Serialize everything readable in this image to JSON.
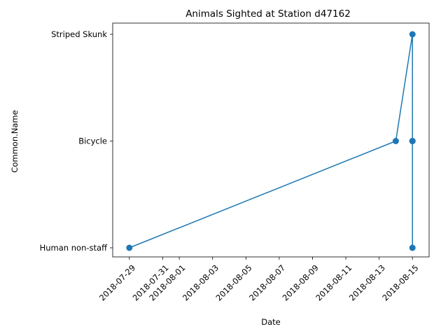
{
  "chart_data": {
    "type": "line",
    "title": "Animals Sighted at Station d47162",
    "xlabel": "Date",
    "ylabel": "Common.Name",
    "x_ticks": [
      "2018-07-29",
      "2018-07-31",
      "2018-08-01",
      "2018-08-03",
      "2018-08-05",
      "2018-08-07",
      "2018-08-09",
      "2018-08-11",
      "2018-08-13",
      "2018-08-15"
    ],
    "categories": [
      "Human non-staff",
      "Bicycle",
      "Striped Skunk"
    ],
    "xlim": [
      "2018-07-28",
      "2018-08-16"
    ],
    "grid": false,
    "color": "#1f77b4",
    "points": [
      {
        "x": "2018-07-29",
        "y": "Human non-staff"
      },
      {
        "x": "2018-08-14",
        "y": "Bicycle"
      },
      {
        "x": "2018-08-15",
        "y": "Striped Skunk"
      },
      {
        "x": "2018-08-15",
        "y": "Bicycle"
      },
      {
        "x": "2018-08-15",
        "y": "Bicycle"
      },
      {
        "x": "2018-08-15",
        "y": "Bicycle"
      },
      {
        "x": "2018-08-15",
        "y": "Human non-staff"
      }
    ]
  }
}
